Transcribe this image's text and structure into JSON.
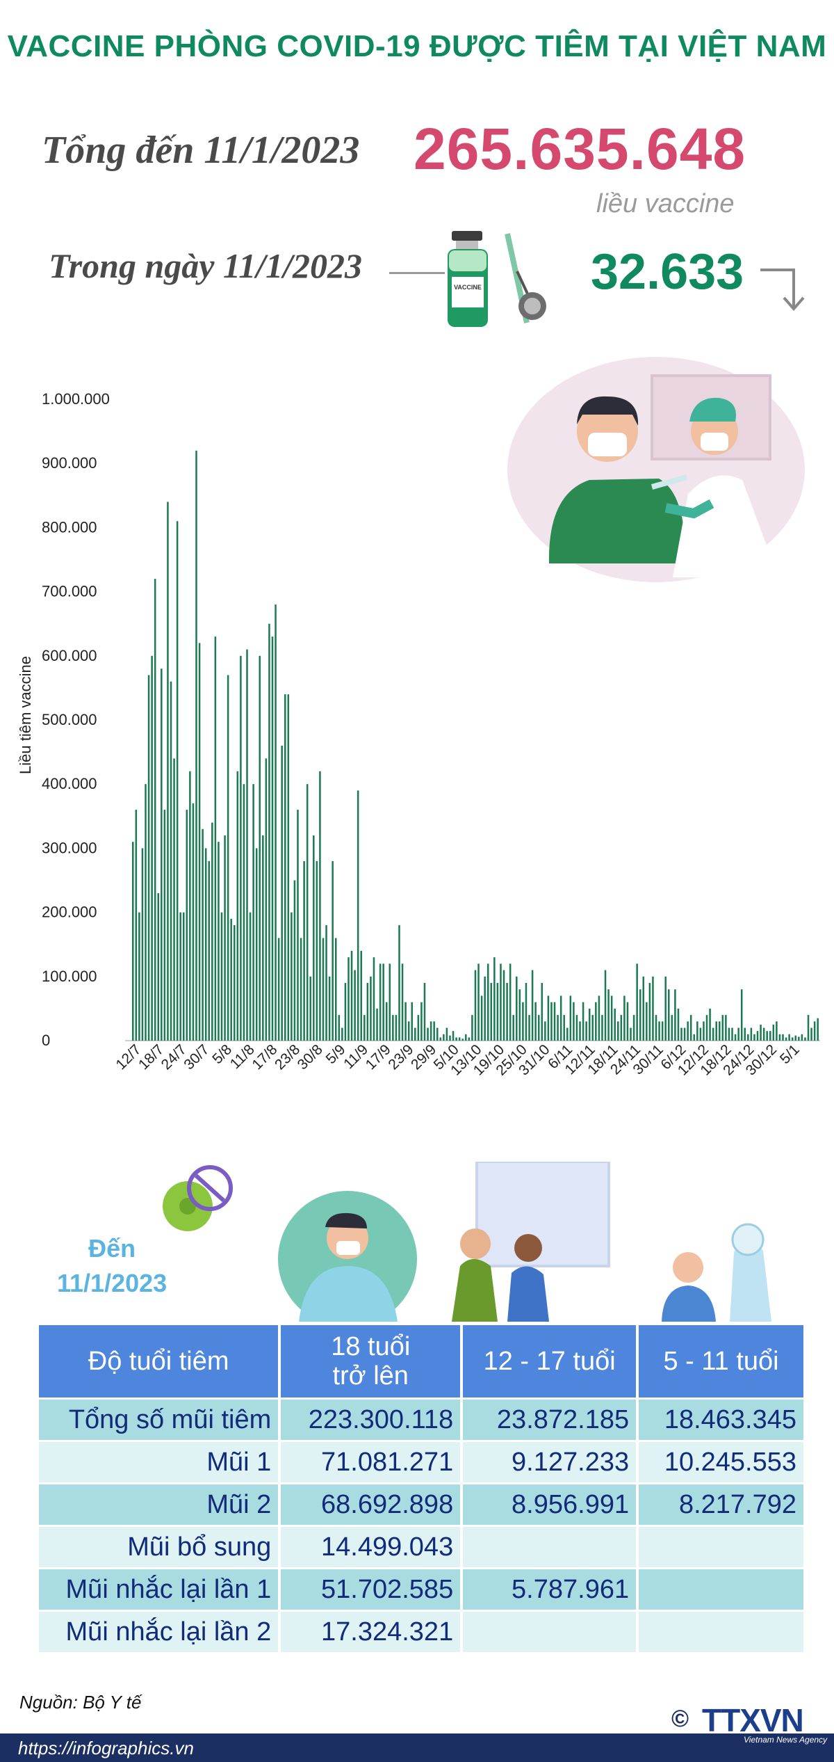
{
  "title": "VACCINE PHÒNG COVID-19 ĐƯỢC TIÊM TẠI VIỆT NAM",
  "summary": {
    "total_label": "Tổng đến 11/1/2023",
    "total_value": "265.635.648",
    "unit": "liều vaccine",
    "day_label": "Trong ngày 11/1/2023",
    "day_value": "32.633",
    "day_trend": "down",
    "vial_label": "VACCINE"
  },
  "colors": {
    "title": "#0e8a5e",
    "total": "#d4496d",
    "bars": "#1b7a52",
    "table_header": "#4f86dd",
    "table_text": "#112a7a"
  },
  "chart_data": {
    "type": "bar",
    "ylabel": "Liều tiêm vaccine",
    "ylim": [
      0,
      1000000
    ],
    "yticks": [
      "0",
      "100.000",
      "200.000",
      "300.000",
      "400.000",
      "500.000",
      "600.000",
      "700.000",
      "800.000",
      "900.000",
      "1.000.000"
    ],
    "xticks": [
      "12/7",
      "18/7",
      "24/7",
      "30/7",
      "5/8",
      "11/8",
      "17/8",
      "23/8",
      "30/8",
      "5/9",
      "11/9",
      "17/9",
      "23/9",
      "29/9",
      "5/10",
      "13/10",
      "19/10",
      "25/10",
      "31/10",
      "6/11",
      "12/11",
      "18/11",
      "24/11",
      "30/11",
      "6/12",
      "12/12",
      "18/12",
      "24/12",
      "30/12",
      "5/1"
    ],
    "values": [
      310000,
      360000,
      200000,
      300000,
      400000,
      570000,
      600000,
      720000,
      230000,
      580000,
      360000,
      840000,
      560000,
      440000,
      810000,
      200000,
      200000,
      360000,
      420000,
      370000,
      920000,
      620000,
      330000,
      300000,
      280000,
      340000,
      630000,
      310000,
      200000,
      320000,
      570000,
      190000,
      180000,
      420000,
      600000,
      400000,
      610000,
      200000,
      400000,
      300000,
      600000,
      320000,
      440000,
      650000,
      630000,
      680000,
      160000,
      460000,
      540000,
      540000,
      200000,
      250000,
      360000,
      160000,
      280000,
      400000,
      100000,
      320000,
      280000,
      420000,
      160000,
      180000,
      100000,
      280000,
      160000,
      40000,
      20000,
      90000,
      130000,
      140000,
      110000,
      390000,
      140000,
      40000,
      90000,
      100000,
      130000,
      50000,
      120000,
      120000,
      60000,
      120000,
      40000,
      40000,
      180000,
      120000,
      60000,
      30000,
      60000,
      20000,
      40000,
      60000,
      90000,
      20000,
      30000,
      30000,
      20000,
      5000,
      10000,
      20000,
      8000,
      15000,
      5000,
      5000,
      3000,
      10000,
      5000,
      40000,
      110000,
      120000,
      70000,
      100000,
      120000,
      90000,
      130000,
      90000,
      120000,
      110000,
      90000,
      120000,
      40000,
      100000,
      80000,
      60000,
      90000,
      40000,
      110000,
      60000,
      40000,
      90000,
      30000,
      70000,
      60000,
      60000,
      40000,
      70000,
      40000,
      20000,
      70000,
      60000,
      40000,
      30000,
      60000,
      30000,
      50000,
      40000,
      60000,
      70000,
      40000,
      110000,
      80000,
      70000,
      50000,
      30000,
      40000,
      70000,
      60000,
      20000,
      40000,
      120000,
      80000,
      100000,
      60000,
      90000,
      100000,
      40000,
      30000,
      30000,
      100000,
      80000,
      40000,
      80000,
      50000,
      20000,
      20000,
      30000,
      40000,
      10000,
      30000,
      20000,
      30000,
      40000,
      50000,
      20000,
      30000,
      30000,
      40000,
      40000,
      20000,
      20000,
      10000,
      20000,
      80000,
      20000,
      10000,
      20000,
      10000,
      15000,
      25000,
      20000,
      15000,
      15000,
      25000,
      30000,
      10000,
      10000,
      5000,
      10000,
      5000,
      8000,
      6000,
      10000,
      5000,
      40000,
      20000,
      30000,
      35000
    ]
  },
  "vaccination": {
    "until_label": "Đến",
    "until_date": "11/1/2023",
    "columns": [
      "Độ tuổi tiêm",
      "18 tuổi\ntrở lên",
      "12 - 17 tuổi",
      "5 - 11 tuổi"
    ],
    "col_18_line1": "18 tuổi",
    "col_18_line2": "trở lên",
    "rows": [
      {
        "label": "Tổng số mũi tiêm",
        "adult": "223.300.118",
        "teen": "23.872.185",
        "child": "18.463.345"
      },
      {
        "label": "Mũi 1",
        "adult": "71.081.271",
        "teen": "9.127.233",
        "child": "10.245.553"
      },
      {
        "label": "Mũi 2",
        "adult": "68.692.898",
        "teen": "8.956.991",
        "child": "8.217.792"
      },
      {
        "label": "Mũi bổ sung",
        "adult": "14.499.043",
        "teen": "",
        "child": ""
      },
      {
        "label": "Mũi nhắc lại lần 1",
        "adult": "51.702.585",
        "teen": "5.787.961",
        "child": ""
      },
      {
        "label": "Mũi nhắc lại lần 2",
        "adult": "17.324.321",
        "teen": "",
        "child": ""
      }
    ]
  },
  "footer": {
    "source": "Nguồn: Bộ Y tế",
    "url": "https://infographics.vn",
    "copyright": "©",
    "logo": "TTXVN",
    "agency": "Vietnam News Agency"
  }
}
